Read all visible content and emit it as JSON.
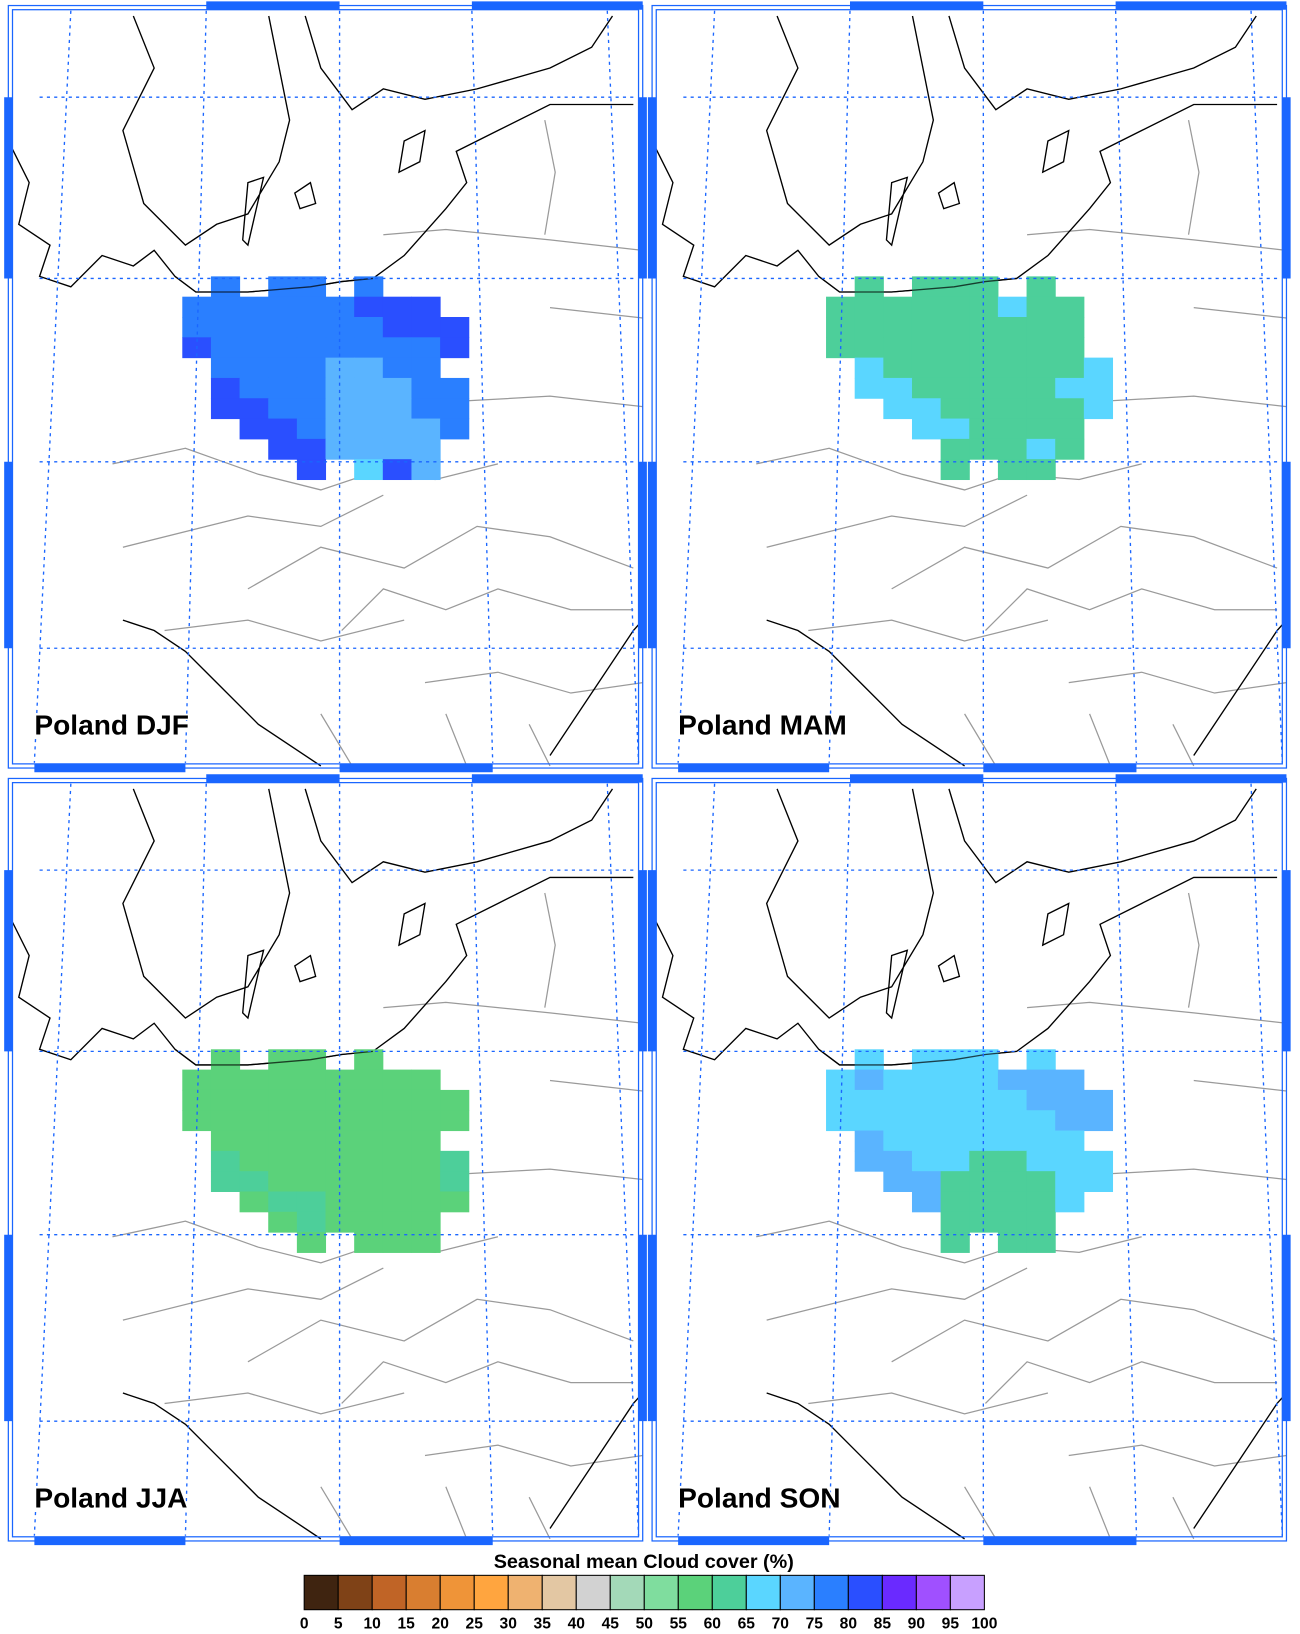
{
  "panels": [
    {
      "title": "Poland DJF",
      "cells": [
        [
          null,
          77,
          null,
          77,
          77,
          null,
          77,
          null,
          null,
          null
        ],
        [
          77,
          77,
          77,
          77,
          77,
          77,
          82,
          82,
          82,
          null
        ],
        [
          77,
          77,
          77,
          77,
          77,
          77,
          77,
          82,
          82,
          82
        ],
        [
          82,
          77,
          77,
          77,
          77,
          77,
          77,
          77,
          77,
          82
        ],
        [
          null,
          77,
          77,
          77,
          77,
          72,
          72,
          77,
          77,
          null
        ],
        [
          null,
          82,
          77,
          77,
          77,
          72,
          72,
          72,
          77,
          77
        ],
        [
          null,
          82,
          82,
          77,
          77,
          72,
          72,
          72,
          77,
          77
        ],
        [
          null,
          null,
          82,
          82,
          77,
          72,
          72,
          72,
          72,
          77
        ],
        [
          null,
          null,
          null,
          82,
          82,
          72,
          72,
          72,
          72,
          null
        ],
        [
          null,
          null,
          null,
          null,
          82,
          null,
          67,
          82,
          72,
          null
        ]
      ]
    },
    {
      "title": "Poland MAM",
      "cells": [
        [
          null,
          62,
          null,
          62,
          62,
          62,
          null,
          62,
          null,
          null
        ],
        [
          62,
          62,
          62,
          62,
          62,
          62,
          67,
          62,
          62,
          null
        ],
        [
          62,
          62,
          62,
          62,
          62,
          62,
          62,
          62,
          62,
          null
        ],
        [
          62,
          62,
          62,
          62,
          62,
          62,
          62,
          62,
          62,
          null
        ],
        [
          null,
          67,
          62,
          62,
          62,
          62,
          62,
          62,
          62,
          67
        ],
        [
          null,
          67,
          67,
          62,
          62,
          62,
          62,
          62,
          67,
          67
        ],
        [
          null,
          null,
          67,
          67,
          62,
          62,
          62,
          62,
          62,
          67
        ],
        [
          null,
          null,
          null,
          67,
          67,
          62,
          62,
          62,
          62,
          null
        ],
        [
          null,
          null,
          null,
          null,
          62,
          62,
          62,
          67,
          62,
          null
        ],
        [
          null,
          null,
          null,
          null,
          62,
          null,
          62,
          62,
          null,
          null
        ]
      ]
    },
    {
      "title": "Poland JJA",
      "cells": [
        [
          null,
          57,
          null,
          57,
          57,
          null,
          57,
          null,
          null,
          null
        ],
        [
          57,
          57,
          57,
          57,
          57,
          57,
          57,
          57,
          57,
          null
        ],
        [
          57,
          57,
          57,
          57,
          57,
          57,
          57,
          57,
          57,
          57
        ],
        [
          57,
          57,
          57,
          57,
          57,
          57,
          57,
          57,
          57,
          57
        ],
        [
          null,
          57,
          57,
          57,
          57,
          57,
          57,
          57,
          57,
          null
        ],
        [
          null,
          62,
          57,
          57,
          57,
          57,
          57,
          57,
          57,
          62
        ],
        [
          null,
          62,
          62,
          57,
          57,
          57,
          57,
          57,
          57,
          62
        ],
        [
          null,
          null,
          57,
          62,
          62,
          57,
          57,
          57,
          57,
          57
        ],
        [
          null,
          null,
          null,
          57,
          62,
          57,
          57,
          57,
          57,
          null
        ],
        [
          null,
          null,
          null,
          null,
          57,
          null,
          57,
          57,
          57,
          null
        ]
      ]
    },
    {
      "title": "Poland SON",
      "cells": [
        [
          null,
          67,
          null,
          67,
          67,
          67,
          null,
          67,
          null,
          null
        ],
        [
          67,
          72,
          67,
          67,
          67,
          67,
          72,
          72,
          72,
          null
        ],
        [
          67,
          67,
          67,
          67,
          67,
          67,
          67,
          72,
          72,
          72
        ],
        [
          67,
          67,
          67,
          67,
          67,
          67,
          67,
          67,
          72,
          72
        ],
        [
          null,
          72,
          67,
          67,
          67,
          67,
          67,
          67,
          67,
          null
        ],
        [
          null,
          72,
          72,
          67,
          67,
          62,
          62,
          67,
          67,
          67
        ],
        [
          null,
          null,
          72,
          72,
          62,
          62,
          62,
          62,
          67,
          67
        ],
        [
          null,
          null,
          null,
          72,
          62,
          62,
          62,
          62,
          67,
          null
        ],
        [
          null,
          null,
          null,
          null,
          62,
          62,
          62,
          62,
          null,
          null
        ],
        [
          null,
          null,
          null,
          null,
          62,
          null,
          62,
          62,
          null,
          null
        ]
      ]
    }
  ],
  "colorbar": {
    "title": "Seasonal mean Cloud cover (%)",
    "ticks": [
      0,
      5,
      10,
      15,
      20,
      25,
      30,
      35,
      40,
      45,
      50,
      55,
      60,
      65,
      70,
      75,
      80,
      85,
      90,
      95,
      100
    ],
    "colors": [
      "#3f2410",
      "#7f4217",
      "#c06426",
      "#d97e30",
      "#ef9438",
      "#ffa53f",
      "#efb270",
      "#e3c7a3",
      "#d2d2d2",
      "#a3d9b8",
      "#7fdd9e",
      "#5bd27a",
      "#4dcf9a",
      "#5ad6ff",
      "#5ab4ff",
      "#2a7fff",
      "#2a4fff",
      "#6a2aff",
      "#a050ff",
      "#c8a0ff"
    ]
  }
}
